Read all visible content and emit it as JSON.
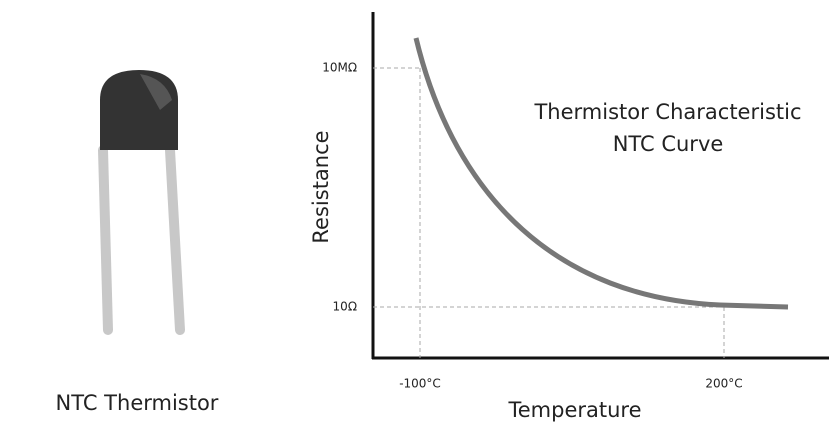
{
  "component": {
    "label": "NTC Thermistor"
  },
  "graph": {
    "title_lines": [
      "Thermistor Characteristic",
      "NTC Curve"
    ],
    "y_axis_label": "Resistance",
    "x_axis_label": "Temperature",
    "y_tick_labels": [
      "10MΩ",
      "10Ω"
    ],
    "x_tick_labels": [
      "-100°C",
      "200°C"
    ]
  }
}
